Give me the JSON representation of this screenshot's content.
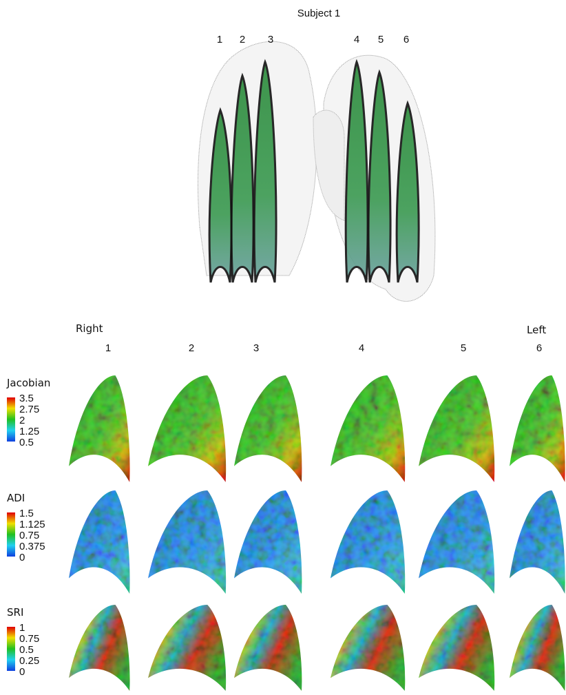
{
  "header": {
    "title": "Subject 1"
  },
  "slices_3d": [
    "1",
    "2",
    "3",
    "4",
    "5",
    "6"
  ],
  "grid": {
    "side_labels": {
      "right": "Right",
      "left": "Left"
    },
    "columns": [
      "1",
      "2",
      "3",
      "4",
      "5",
      "6"
    ],
    "rows": [
      {
        "label": "Jacobian",
        "scale": [
          "3.5",
          "2.75",
          "2",
          "1.25",
          "0.5"
        ]
      },
      {
        "label": "ADI",
        "scale": [
          "1.5",
          "1.125",
          "0.75",
          "0.375",
          "0"
        ]
      },
      {
        "label": "SRI",
        "scale": [
          "1",
          "0.75",
          "0.5",
          "0.25",
          "0"
        ]
      }
    ]
  }
}
